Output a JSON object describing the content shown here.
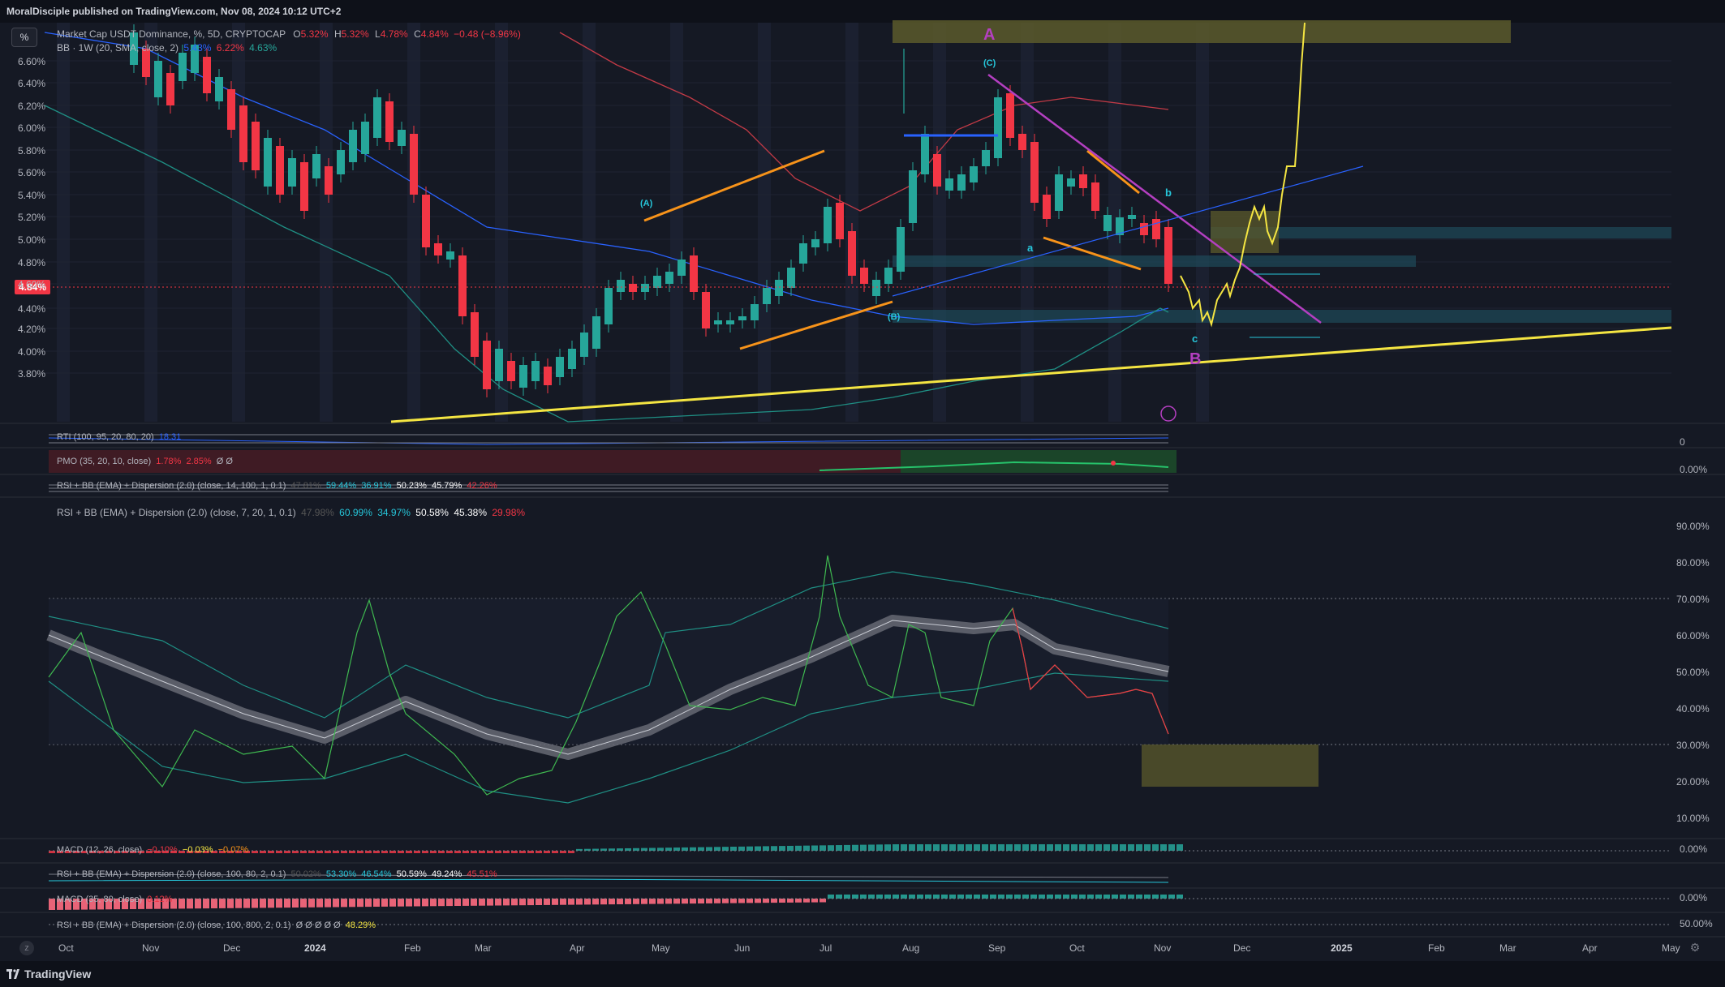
{
  "header": {
    "published": "MoralDisciple published on TradingView.com, Nov 08, 2024 10:12 UTC+2"
  },
  "scale_button": "%",
  "main_legend": {
    "title": "Market Cap USDT Dominance, %, 5D, CRYPTOCAP",
    "o_label": "O",
    "o": "5.32%",
    "h_label": "H",
    "h": "5.32%",
    "l_label": "L",
    "l": "4.78%",
    "c_label": "C",
    "c": "4.84%",
    "change": "−0.48 (−8.96%)",
    "bb_label": "BB · 1W (20, SMA, close, 2)",
    "bb1": "5.43%",
    "bb2": "6.22%",
    "bb3": "4.63%"
  },
  "current_price": "4.84%",
  "price_axis": [
    "6.60%",
    "6.40%",
    "6.20%",
    "6.00%",
    "5.80%",
    "5.60%",
    "5.40%",
    "5.20%",
    "5.00%",
    "4.80%",
    "4.60%",
    "4.40%",
    "4.20%",
    "4.00%",
    "3.80%"
  ],
  "wave_labels": {
    "A_big": "A",
    "B_big": "B",
    "C_paren": "(C)",
    "A_paren": "(A)",
    "B_paren": "(B)",
    "a_small": "a",
    "b_small": "b",
    "c_small": "c"
  },
  "panes": {
    "rti": {
      "label": "RTI (100, 95, 20, 80, 20)",
      "v1": "18.31",
      "axis": "0"
    },
    "pmo": {
      "label": "PMO (35, 20, 10, close)",
      "v1": "1.78%",
      "v2": "2.85%",
      "v3": "Ø Ø",
      "axis": "0.00%"
    },
    "rsi14": {
      "label": "RSI + BB (EMA) + Dispersion (2.0) (close, 14, 100, 1, 0.1)",
      "v0": "47.81%",
      "v1": "59.44%",
      "v2": "36.91%",
      "v3": "50.23%",
      "v4": "45.79%",
      "v5": "42.26%"
    },
    "rsi7": {
      "label": "RSI + BB (EMA) + Dispersion (2.0) (close, 7, 20, 1, 0.1)",
      "v0": "47.98%",
      "v1": "60.99%",
      "v2": "34.97%",
      "v3": "50.58%",
      "v4": "45.38%",
      "v5": "29.98%",
      "axis": [
        "90.00%",
        "80.00%",
        "70.00%",
        "60.00%",
        "50.00%",
        "40.00%",
        "30.00%",
        "20.00%",
        "10.00%"
      ]
    },
    "macd1": {
      "label": "MACD (12, 26, close)",
      "v1": "−0.10%",
      "v2": "−0.03%",
      "v3": "−0.07%",
      "axis": "0.00%"
    },
    "rsi100": {
      "label": "RSI + BB (EMA) + Dispersion (2.0) (close, 100, 80, 2, 0.1)",
      "v0": "50.02%",
      "v1": "53.30%",
      "v2": "46.54%",
      "v3": "50.59%",
      "v4": "49.24%",
      "v5": "45.51%"
    },
    "macd2": {
      "label": "MACD (35, 80, close)",
      "v1": "0.12%",
      "axis": "0.00%"
    },
    "rsi800": {
      "label": "RSI + BB (EMA) + Dispersion (2.0) (close, 100, 800, 2, 0.1)",
      "v1": "Ø Ø Ø Ø Ø",
      "v2": "48.29%",
      "axis": "50.00%"
    }
  },
  "time_axis": [
    {
      "t": "Oct",
      "bold": false
    },
    {
      "t": "Nov",
      "bold": false
    },
    {
      "t": "Dec",
      "bold": false
    },
    {
      "t": "2024",
      "bold": true
    },
    {
      "t": "Feb",
      "bold": false
    },
    {
      "t": "Mar",
      "bold": false
    },
    {
      "t": "Apr",
      "bold": false
    },
    {
      "t": "May",
      "bold": false
    },
    {
      "t": "Jun",
      "bold": false
    },
    {
      "t": "Jul",
      "bold": false
    },
    {
      "t": "Aug",
      "bold": false
    },
    {
      "t": "Sep",
      "bold": false
    },
    {
      "t": "Oct",
      "bold": false
    },
    {
      "t": "Nov",
      "bold": false
    },
    {
      "t": "Dec",
      "bold": false
    },
    {
      "t": "2025",
      "bold": true
    },
    {
      "t": "Feb",
      "bold": false
    },
    {
      "t": "Mar",
      "bold": false
    },
    {
      "t": "Apr",
      "bold": false
    },
    {
      "t": "May",
      "bold": false
    }
  ],
  "footer": {
    "brand": "TradingView"
  },
  "colors": {
    "background": "#151924",
    "up": "#26a69a",
    "down": "#f23645",
    "wave_orange": "#f7931a",
    "trend_yellow": "#f4e542",
    "wave_magenta": "#b43fc1",
    "bb_blue": "#2962ff",
    "bb_red": "#c23a46",
    "bb_teal": "#1f8f84"
  },
  "icons": {
    "zoom": "z-icon",
    "settings": "gear-icon"
  }
}
